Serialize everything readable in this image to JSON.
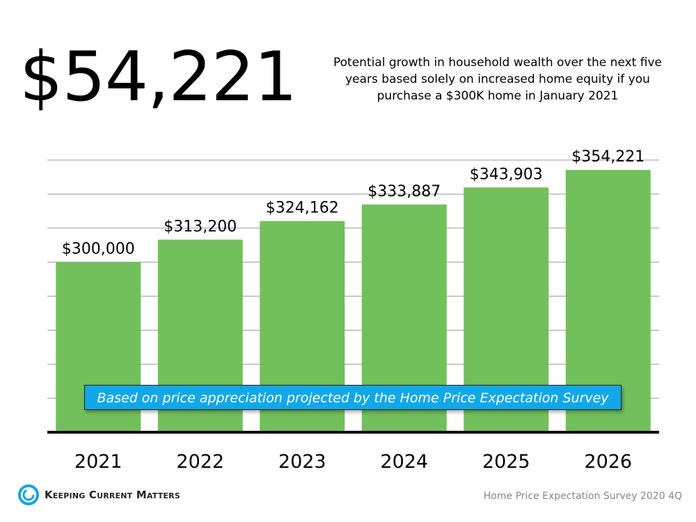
{
  "headline": "$54,221",
  "subtitle": "Potential growth in household wealth over the next five years based solely on increased home equity if you purchase a $300K home in January 2021",
  "note": "Based on price appreciation projected by the Home Price Expectation Survey",
  "logo_text": "Keeping Current Matters",
  "source": "Home Price Expectation Survey 2020 4Q",
  "colors": {
    "bar": "#72c05b",
    "note_bg": "#12a8e8",
    "logo": "#1aa3dc"
  },
  "chart_data": {
    "type": "bar",
    "categories": [
      "2021",
      "2022",
      "2023",
      "2024",
      "2025",
      "2026"
    ],
    "values": [
      300000,
      313200,
      324162,
      333887,
      343903,
      354221
    ],
    "data_labels": [
      "$300,000",
      "$313,200",
      "$324,162",
      "$333,887",
      "$343,903",
      "$354,221"
    ],
    "ylim": [
      200000,
      360000
    ],
    "grid": true,
    "gridline_step": 20000,
    "xlabel": "",
    "ylabel": ""
  }
}
